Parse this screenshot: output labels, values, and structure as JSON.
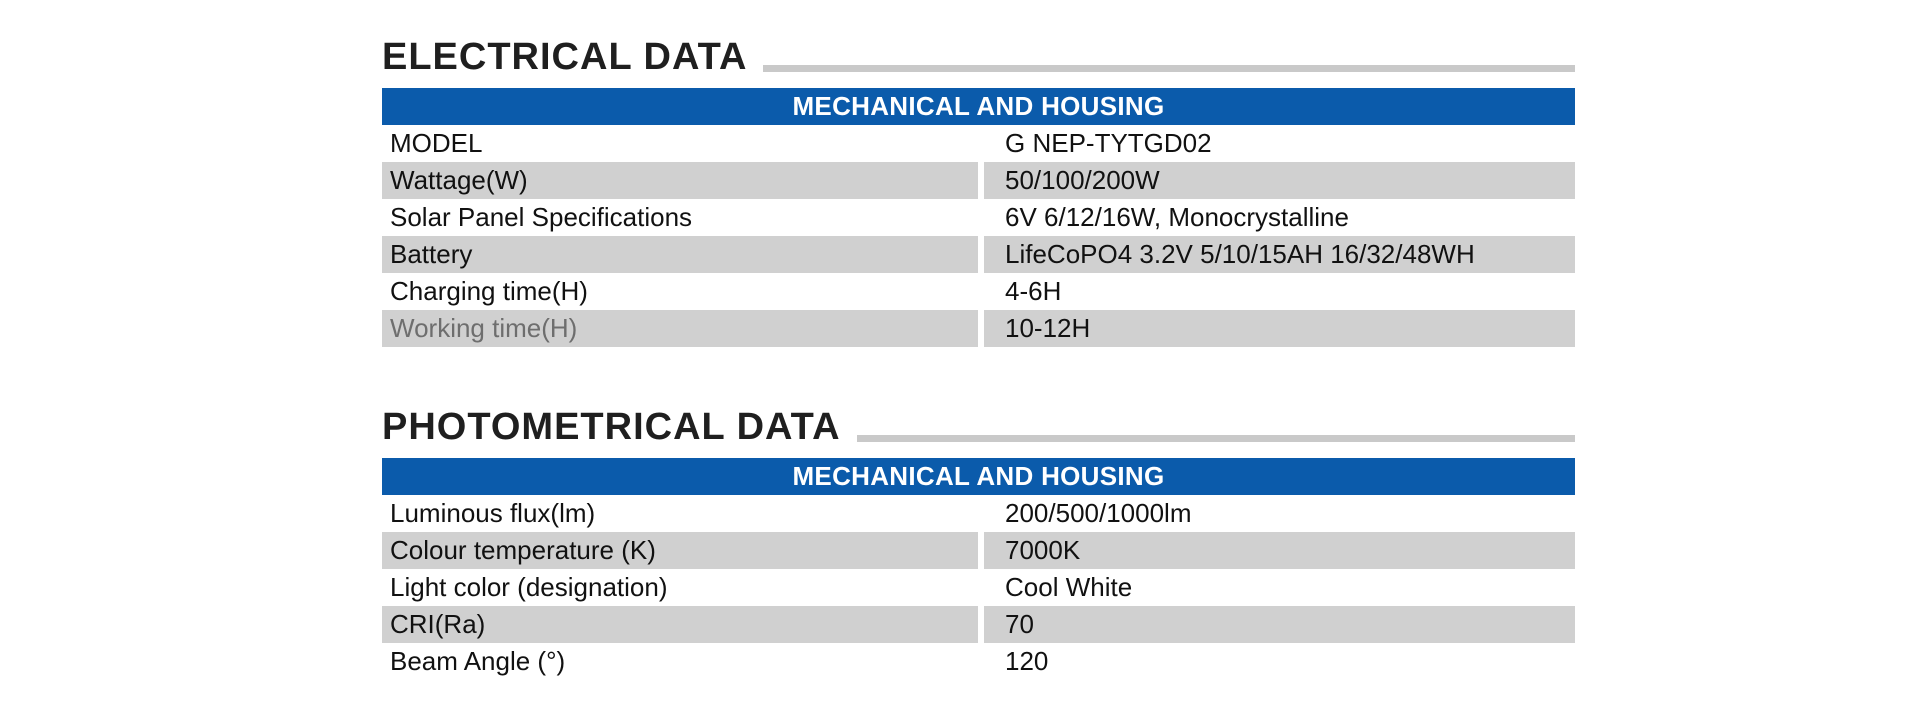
{
  "colors": {
    "header_blue": "#0b5bab",
    "row_gray": "#d0d0d0",
    "rule_gray": "#c9c9c9",
    "muted_text": "#6e6e6e"
  },
  "sections": [
    {
      "title": "ELECTRICAL DATA",
      "table_header": "MECHANICAL AND HOUSING",
      "rows": [
        {
          "label": "MODEL",
          "value": "G NEP-TYTGD02"
        },
        {
          "label": "Wattage(W)",
          "value": "50/100/200W"
        },
        {
          "label": "Solar Panel Specifications",
          "value": "6V 6/12/16W, Monocrystalline"
        },
        {
          "label": "Battery",
          "value": "LifeCoPO4 3.2V 5/10/15AH 16/32/48WH"
        },
        {
          "label": "Charging time(H)",
          "value": "4-6H"
        },
        {
          "label": "Working time(H)",
          "value": "10-12H"
        }
      ]
    },
    {
      "title": "PHOTOMETRICAL DATA",
      "table_header": "MECHANICAL AND HOUSING",
      "rows": [
        {
          "label": "Luminous flux(lm)",
          "value": "200/500/1000lm"
        },
        {
          "label": "Colour temperature (K)",
          "value": "7000K"
        },
        {
          "label": "Light color (designation)",
          "value": "Cool White"
        },
        {
          "label": "CRI(Ra)",
          "value": "70"
        },
        {
          "label": "Beam Angle (°)",
          "value": "120"
        }
      ]
    }
  ]
}
